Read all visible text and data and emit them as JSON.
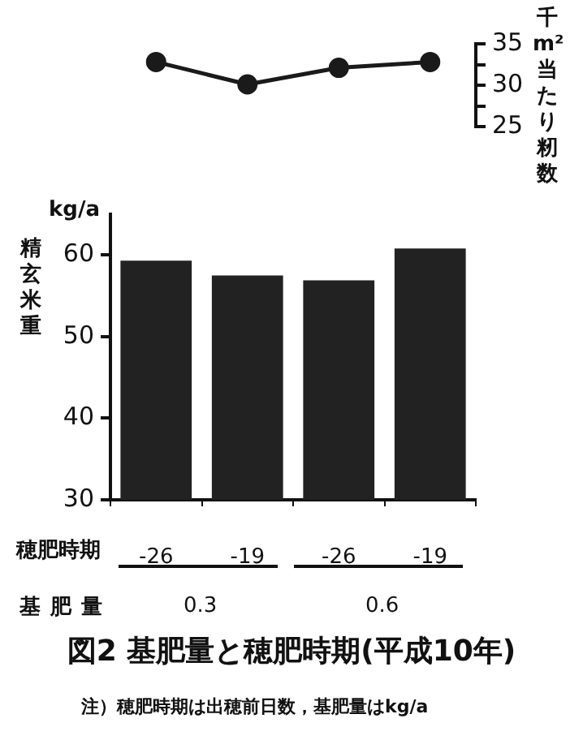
{
  "chart_data": [
    {
      "type": "line",
      "categories": [
        "-26",
        "-19",
        "-26",
        "-19"
      ],
      "values": [
        32.8,
        30.1,
        32.1,
        32.8
      ],
      "color": "#1a1a1a",
      "ylabel": "千m²当たり籾数",
      "ylim": [
        25,
        35
      ],
      "yticks": [
        25,
        {
          "value": 27.5,
          "label": null
        },
        30,
        {
          "value": 32.5,
          "label": null
        },
        35
      ],
      "tick_labels": "y",
      "marker": "circle"
    },
    {
      "type": "bar",
      "categories": [
        "-26",
        "-19",
        "-26",
        "-19"
      ],
      "values": [
        59.3,
        57.5,
        56.9,
        60.8
      ],
      "color": "#222222",
      "title": "図2 基肥量と穂肥時期(平成10年)",
      "xlabel": "穂肥時期",
      "ylabel": "精玄米重",
      "ylim": [
        30,
        65
      ],
      "yticks": [
        30,
        40,
        50,
        60
      ],
      "annotations": [
        "kg/a",
        "基肥量",
        "0.3",
        "0.6",
        "注）穂肥時期は出穂前日数，基肥量はkg/a"
      ]
    }
  ]
}
